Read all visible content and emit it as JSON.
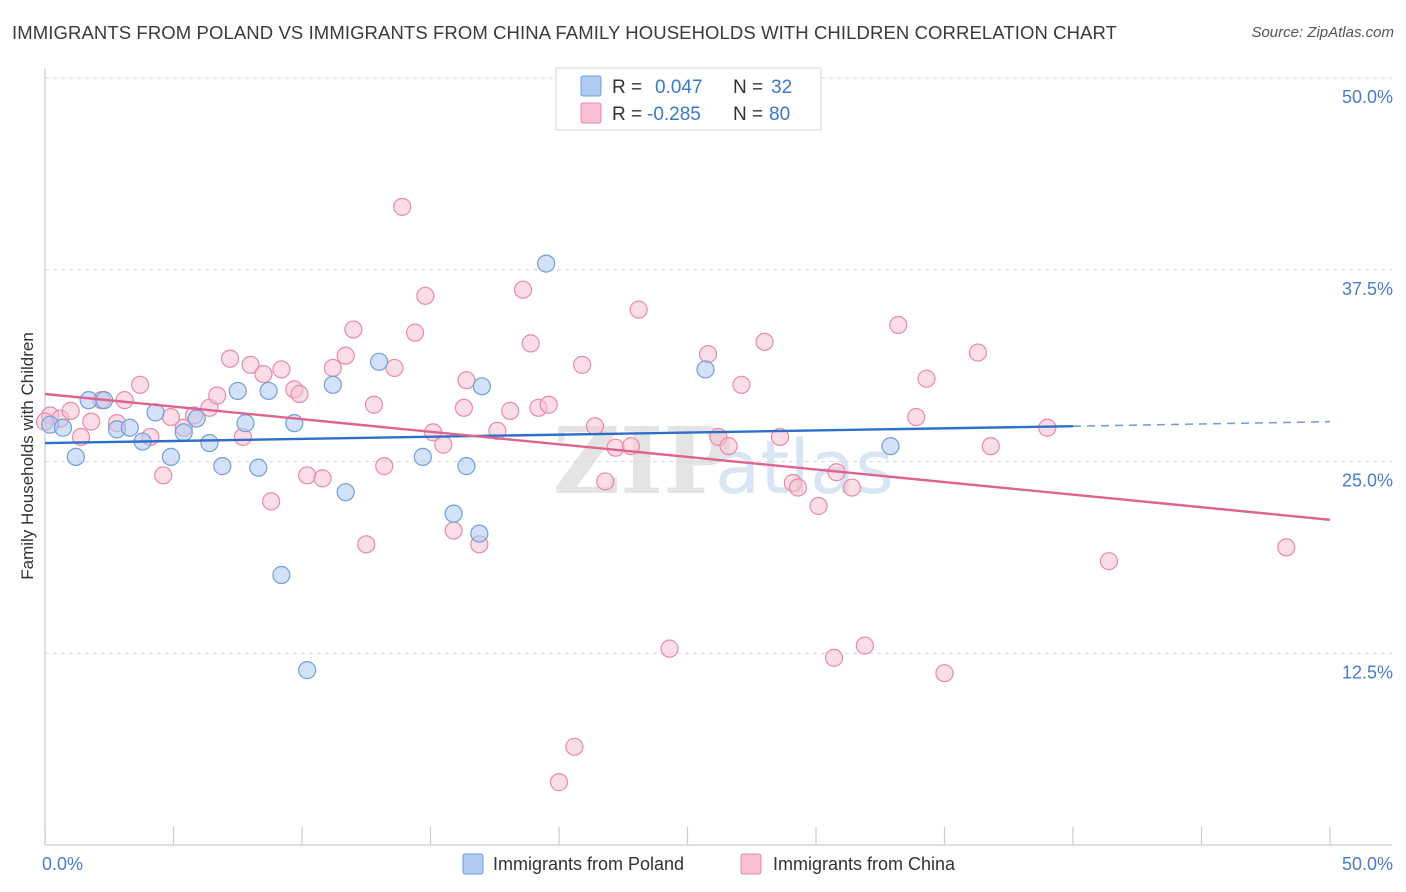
{
  "title": "IMMIGRANTS FROM POLAND VS IMMIGRANTS FROM CHINA FAMILY HOUSEHOLDS WITH CHILDREN CORRELATION CHART",
  "source": "Source: ZipAtlas.com",
  "watermark": {
    "zip": "ZIP",
    "atlas": "atlas"
  },
  "chart_data": {
    "type": "scatter",
    "ylabel": "Family Households with Children",
    "xlabel": "",
    "xlim": [
      0,
      50
    ],
    "ylim": [
      0,
      50
    ],
    "x_tick_labels": [
      "0.0%",
      "50.0%"
    ],
    "y_ticks": [
      12.5,
      25.0,
      37.5,
      50.0
    ],
    "y_tick_labels": [
      "12.5%",
      "25.0%",
      "37.5%",
      "50.0%"
    ],
    "grid": "horizontal dashed",
    "legend": {
      "placement": "top-center",
      "rows": [
        {
          "r_label": "R =",
          "r_value": "0.047",
          "n_label": "N =",
          "n_value": "32",
          "color": "#aecbf2",
          "stroke": "#6f9fdc"
        },
        {
          "r_label": "R =",
          "r_value": "-0.285",
          "n_label": "N =",
          "n_value": "80",
          "color": "#f7c1d2",
          "stroke": "#e88aa8"
        }
      ]
    },
    "series": [
      {
        "name": "Immigrants from Poland",
        "color": "#aecbf2",
        "stroke": "#6f9fdc",
        "line_color": "#2f6fcc",
        "trend": {
          "x0": 0,
          "y0": 26.2,
          "x1": 40,
          "y1": 27.3,
          "dash_x1": 50,
          "dash_y1": 27.6
        },
        "points": [
          [
            0.2,
            27.4
          ],
          [
            0.7,
            27.2
          ],
          [
            1.2,
            25.3
          ],
          [
            1.7,
            29.0
          ],
          [
            2.3,
            29.0
          ],
          [
            2.8,
            27.1
          ],
          [
            3.3,
            27.2
          ],
          [
            3.8,
            26.3
          ],
          [
            4.3,
            28.2
          ],
          [
            4.9,
            25.3
          ],
          [
            5.4,
            26.9
          ],
          [
            5.9,
            27.8
          ],
          [
            6.4,
            26.2
          ],
          [
            6.9,
            24.7
          ],
          [
            7.5,
            29.6
          ],
          [
            7.8,
            27.5
          ],
          [
            8.3,
            24.6
          ],
          [
            8.7,
            29.6
          ],
          [
            9.2,
            17.6
          ],
          [
            9.7,
            27.5
          ],
          [
            10.2,
            11.4
          ],
          [
            11.2,
            30.0
          ],
          [
            11.7,
            23.0
          ],
          [
            13.0,
            31.5
          ],
          [
            14.7,
            25.3
          ],
          [
            15.9,
            21.6
          ],
          [
            16.4,
            24.7
          ],
          [
            17.0,
            29.9
          ],
          [
            16.9,
            20.3
          ],
          [
            19.5,
            37.9
          ],
          [
            25.7,
            31.0
          ],
          [
            32.9,
            26.0
          ]
        ]
      },
      {
        "name": "Immigrants from China",
        "color": "#f7c1d2",
        "stroke": "#e88aa8",
        "line_color": "#e0628f",
        "trend": {
          "x0": 0,
          "y0": 29.4,
          "x1": 50,
          "y1": 21.2
        },
        "points": [
          [
            0.2,
            28.0
          ],
          [
            0.6,
            27.8
          ],
          [
            1.0,
            28.3
          ],
          [
            1.4,
            26.6
          ],
          [
            1.8,
            27.6
          ],
          [
            2.2,
            29.0
          ],
          [
            2.8,
            27.5
          ],
          [
            3.1,
            29.0
          ],
          [
            3.7,
            30.0
          ],
          [
            4.1,
            26.6
          ],
          [
            4.6,
            24.1
          ],
          [
            4.9,
            27.9
          ],
          [
            5.4,
            27.2
          ],
          [
            5.8,
            28.0
          ],
          [
            6.4,
            28.5
          ],
          [
            6.7,
            29.3
          ],
          [
            7.2,
            31.7
          ],
          [
            7.7,
            26.6
          ],
          [
            8.0,
            31.3
          ],
          [
            8.5,
            30.7
          ],
          [
            8.8,
            22.4
          ],
          [
            9.2,
            31.0
          ],
          [
            9.7,
            29.7
          ],
          [
            9.9,
            29.4
          ],
          [
            10.2,
            24.1
          ],
          [
            10.8,
            23.9
          ],
          [
            11.2,
            31.1
          ],
          [
            11.7,
            31.9
          ],
          [
            12.0,
            33.6
          ],
          [
            12.5,
            19.6
          ],
          [
            12.8,
            28.7
          ],
          [
            13.2,
            24.7
          ],
          [
            13.6,
            31.1
          ],
          [
            13.9,
            41.6
          ],
          [
            14.4,
            33.4
          ],
          [
            14.8,
            35.8
          ],
          [
            15.1,
            26.9
          ],
          [
            15.5,
            26.1
          ],
          [
            15.9,
            20.5
          ],
          [
            16.3,
            28.5
          ],
          [
            16.4,
            30.3
          ],
          [
            16.9,
            19.6
          ],
          [
            17.6,
            27.0
          ],
          [
            18.1,
            28.3
          ],
          [
            18.6,
            36.2
          ],
          [
            18.9,
            32.7
          ],
          [
            19.2,
            28.5
          ],
          [
            19.6,
            28.7
          ],
          [
            20.0,
            4.1
          ],
          [
            20.6,
            6.4
          ],
          [
            20.9,
            31.3
          ],
          [
            21.4,
            27.3
          ],
          [
            21.8,
            23.7
          ],
          [
            22.2,
            25.9
          ],
          [
            22.8,
            26.0
          ],
          [
            23.1,
            34.9
          ],
          [
            24.3,
            12.8
          ],
          [
            25.8,
            32.0
          ],
          [
            26.2,
            26.6
          ],
          [
            26.6,
            26.0
          ],
          [
            27.1,
            30.0
          ],
          [
            28.0,
            32.8
          ],
          [
            28.6,
            26.6
          ],
          [
            29.1,
            23.6
          ],
          [
            29.3,
            23.3
          ],
          [
            30.1,
            22.1
          ],
          [
            30.7,
            12.2
          ],
          [
            30.8,
            24.3
          ],
          [
            31.4,
            23.3
          ],
          [
            31.9,
            13.0
          ],
          [
            33.2,
            33.9
          ],
          [
            33.9,
            27.9
          ],
          [
            34.3,
            30.4
          ],
          [
            35.0,
            11.2
          ],
          [
            36.3,
            32.1
          ],
          [
            36.8,
            26.0
          ],
          [
            39.0,
            27.2
          ],
          [
            41.4,
            18.5
          ],
          [
            48.3,
            19.4
          ],
          [
            0.0,
            27.6
          ]
        ]
      }
    ]
  }
}
